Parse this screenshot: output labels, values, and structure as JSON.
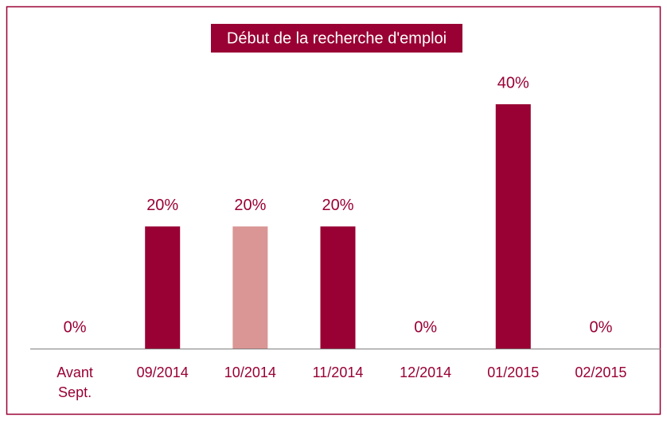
{
  "chart_data": {
    "type": "bar",
    "title": "Début de la recherche d'emploi",
    "categories": [
      "Avant Sept.",
      "09/2014",
      "10/2014",
      "11/2014",
      "12/2014",
      "01/2015",
      "02/2015"
    ],
    "values": [
      0,
      20,
      20,
      20,
      0,
      40,
      0
    ],
    "value_labels": [
      "0%",
      "20%",
      "20%",
      "20%",
      "0%",
      "40%",
      "0%"
    ],
    "colors": [
      "#990033",
      "#990033",
      "#d99694",
      "#990033",
      "#990033",
      "#990033",
      "#990033"
    ]
  }
}
